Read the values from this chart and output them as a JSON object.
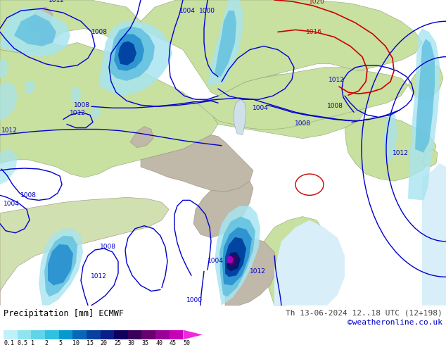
{
  "title_left": "Precipitation [mm] ECMWF",
  "title_right": "Th 13-06-2024 12..18 UTC (12+198)",
  "credit": "©weatheronline.co.uk",
  "bg_map_color": "#c8e8b0",
  "sea_color": "#d8eef8",
  "light_land_color": "#c8e0a0",
  "gray_land_color": "#c0b8a8",
  "colorbar_colors": [
    "#c0f0f8",
    "#90e4f0",
    "#60d4e8",
    "#30c0e0",
    "#0898d0",
    "#0868b8",
    "#0840a0",
    "#082088",
    "#100060",
    "#380058",
    "#680070",
    "#980098",
    "#c800b8",
    "#f028e0"
  ],
  "colorbar_labels": [
    "0.1",
    "0.5",
    "1",
    "2",
    "5",
    "10",
    "15",
    "20",
    "25",
    "30",
    "35",
    "40",
    "45",
    "50"
  ]
}
